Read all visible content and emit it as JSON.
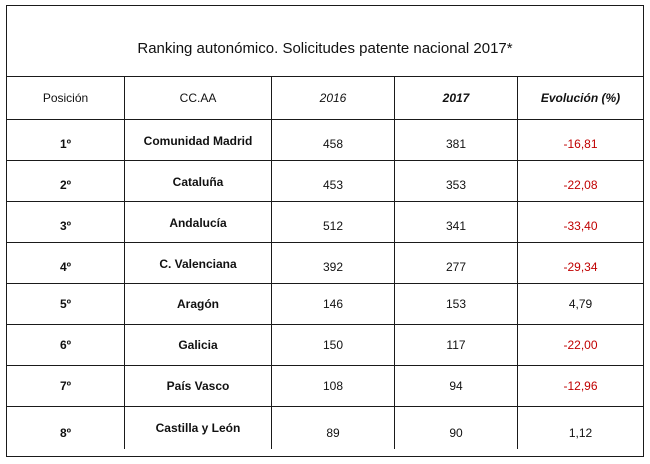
{
  "title": "Ranking autonómico. Solicitudes patente nacional 2017*",
  "headers": {
    "posicion": "Posición",
    "ccaa": "CC.AA",
    "y2016": "2016",
    "y2017": "2017",
    "evolucion": "Evolución (%)"
  },
  "rows": [
    {
      "pos": "1º",
      "ccaa": "Comunidad  Madrid",
      "y2016": "458",
      "y2017": "381",
      "evol": "-16,81"
    },
    {
      "pos": "2º",
      "ccaa": "Cataluña",
      "y2016": "453",
      "y2017": "353",
      "evol": "-22,08"
    },
    {
      "pos": "3º",
      "ccaa": "Andalucía",
      "y2016": "512",
      "y2017": "341",
      "evol": "-33,40"
    },
    {
      "pos": "4º",
      "ccaa": "C. Valenciana",
      "y2016": "392",
      "y2017": "277",
      "evol": "-29,34"
    },
    {
      "pos": "5º",
      "ccaa": "Aragón",
      "y2016": "146",
      "y2017": "153",
      "evol": "4,79"
    },
    {
      "pos": "6º",
      "ccaa": "Galicia",
      "y2016": "150",
      "y2017": "117",
      "evol": "-22,00"
    },
    {
      "pos": "7º",
      "ccaa": "País Vasco",
      "y2016": "108",
      "y2017": "94",
      "evol": "-12,96"
    },
    {
      "pos": "8º",
      "ccaa": "Castilla y León",
      "y2016": "89",
      "y2017": "90",
      "evol": "1,12"
    }
  ],
  "colors": {
    "negative": "#c00000",
    "positive": "#111111",
    "border": "#1a1a1a"
  }
}
